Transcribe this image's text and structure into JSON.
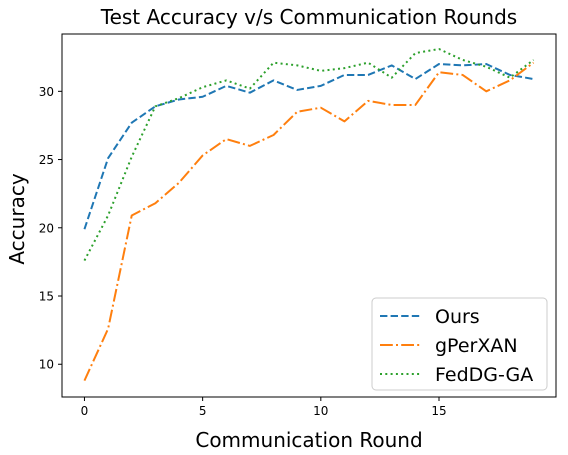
{
  "chart_data": {
    "type": "line",
    "title": "Test Accuracy v/s Communication Rounds",
    "xlabel": "Communication Round",
    "ylabel": "Accuracy",
    "x": [
      0,
      1,
      2,
      3,
      4,
      5,
      6,
      7,
      8,
      9,
      10,
      11,
      12,
      13,
      14,
      15,
      16,
      17,
      18,
      19
    ],
    "xlim": [
      -0.95,
      19.95
    ],
    "ylim": [
      7.6,
      34.2
    ],
    "xticks": [
      0,
      5,
      10,
      15
    ],
    "yticks": [
      10,
      15,
      20,
      25,
      30
    ],
    "grid": false,
    "legend_position": "lower-right",
    "series": [
      {
        "name": "Ours",
        "color": "#1f77b4",
        "linestyle": "dashed",
        "values": [
          19.9,
          25.1,
          27.7,
          28.9,
          29.4,
          29.6,
          30.4,
          29.9,
          30.8,
          30.1,
          30.4,
          31.2,
          31.2,
          31.9,
          30.9,
          32.0,
          31.9,
          32.0,
          31.2,
          30.9
        ]
      },
      {
        "name": "gPerXAN",
        "color": "#ff7f0e",
        "linestyle": "dashdot",
        "values": [
          8.8,
          12.6,
          20.9,
          21.8,
          23.3,
          25.3,
          26.5,
          26.0,
          26.8,
          28.5,
          28.8,
          27.8,
          29.3,
          29.0,
          29.0,
          31.4,
          31.2,
          30.0,
          30.8,
          32.1
        ]
      },
      {
        "name": "FedDG-GA",
        "color": "#2ca02c",
        "linestyle": "dotted",
        "values": [
          17.6,
          20.9,
          25.2,
          28.9,
          29.5,
          30.3,
          30.8,
          30.2,
          32.1,
          31.9,
          31.5,
          31.7,
          32.1,
          31.0,
          32.8,
          33.1,
          32.3,
          31.8,
          31.0,
          32.3
        ]
      }
    ]
  }
}
